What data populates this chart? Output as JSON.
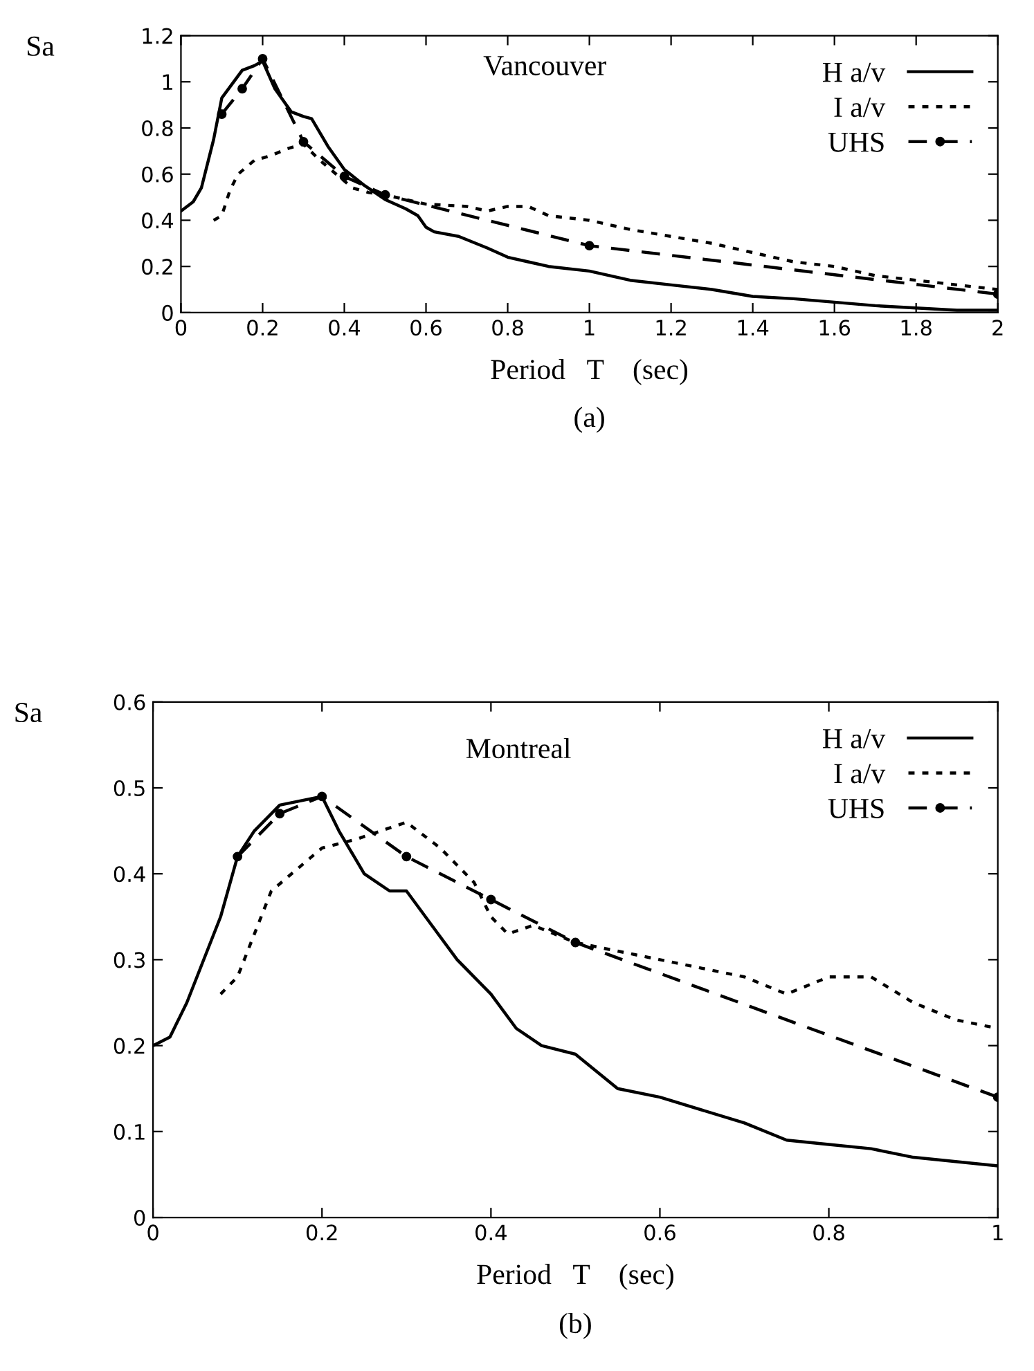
{
  "chart_data": [
    {
      "type": "line",
      "title": "Vancouver",
      "xlabel": "Period   T    (sec)",
      "ylabel": "Sa",
      "annotations": [
        "(a)"
      ],
      "xlim": [
        0,
        2
      ],
      "ylim": [
        0,
        1.2
      ],
      "xticks": [
        0,
        0.2,
        0.4,
        0.6,
        0.8,
        1,
        1.2,
        1.4,
        1.6,
        1.8,
        2
      ],
      "yticks": [
        0,
        0.2,
        0.4,
        0.6,
        0.8,
        1,
        1.2
      ],
      "grid": false,
      "legend": "top right",
      "series": [
        {
          "name": "H a/v",
          "color": "#000000",
          "line_style": "solid",
          "marker": "none",
          "x": [
            0,
            0.03,
            0.05,
            0.08,
            0.1,
            0.15,
            0.18,
            0.2,
            0.23,
            0.27,
            0.3,
            0.32,
            0.36,
            0.4,
            0.45,
            0.5,
            0.55,
            0.58,
            0.6,
            0.62,
            0.68,
            0.75,
            0.8,
            0.85,
            0.9,
            1.0,
            1.1,
            1.2,
            1.3,
            1.4,
            1.5,
            1.6,
            1.7,
            1.8,
            1.9,
            2.0
          ],
          "values": [
            0.44,
            0.48,
            0.54,
            0.75,
            0.93,
            1.05,
            1.07,
            1.09,
            0.97,
            0.87,
            0.85,
            0.84,
            0.72,
            0.62,
            0.55,
            0.49,
            0.45,
            0.42,
            0.37,
            0.35,
            0.33,
            0.28,
            0.24,
            0.22,
            0.2,
            0.18,
            0.14,
            0.12,
            0.1,
            0.07,
            0.06,
            0.045,
            0.03,
            0.02,
            0.01,
            0.01
          ]
        },
        {
          "name": "I a/v",
          "color": "#000000",
          "line_style": "dotted",
          "marker": "none",
          "x": [
            0.08,
            0.1,
            0.12,
            0.14,
            0.18,
            0.22,
            0.26,
            0.3,
            0.34,
            0.38,
            0.42,
            0.46,
            0.5,
            0.55,
            0.6,
            0.7,
            0.75,
            0.8,
            0.85,
            0.9,
            1.0,
            1.05,
            1.1,
            1.2,
            1.3,
            1.4,
            1.5,
            1.6,
            1.7,
            1.8,
            1.9,
            2.0
          ],
          "values": [
            0.4,
            0.42,
            0.53,
            0.6,
            0.66,
            0.68,
            0.71,
            0.73,
            0.66,
            0.6,
            0.54,
            0.52,
            0.51,
            0.49,
            0.47,
            0.46,
            0.44,
            0.46,
            0.46,
            0.42,
            0.4,
            0.38,
            0.36,
            0.33,
            0.3,
            0.26,
            0.22,
            0.2,
            0.16,
            0.14,
            0.12,
            0.1
          ]
        },
        {
          "name": "UHS",
          "color": "#000000",
          "line_style": "dashed",
          "marker": "circle",
          "x": [
            0.1,
            0.15,
            0.2,
            0.3,
            0.4,
            0.5,
            1.0,
            2.0
          ],
          "values": [
            0.86,
            0.97,
            1.1,
            0.74,
            0.59,
            0.51,
            0.29,
            0.08
          ]
        }
      ]
    },
    {
      "type": "line",
      "title": "Montreal",
      "xlabel": "Period   T    (sec)",
      "ylabel": "Sa",
      "annotations": [
        "(b)"
      ],
      "xlim": [
        0,
        1
      ],
      "ylim": [
        0,
        0.6
      ],
      "xticks": [
        0,
        0.2,
        0.4,
        0.6,
        0.8,
        1
      ],
      "yticks": [
        0,
        0.1,
        0.2,
        0.3,
        0.4,
        0.5,
        0.6
      ],
      "grid": false,
      "legend": "top right",
      "series": [
        {
          "name": "H a/v",
          "color": "#000000",
          "line_style": "solid",
          "marker": "none",
          "x": [
            0,
            0.02,
            0.04,
            0.08,
            0.1,
            0.12,
            0.15,
            0.2,
            0.22,
            0.25,
            0.28,
            0.3,
            0.33,
            0.36,
            0.4,
            0.43,
            0.46,
            0.5,
            0.55,
            0.6,
            0.7,
            0.75,
            0.8,
            0.85,
            0.9,
            1.0
          ],
          "values": [
            0.2,
            0.21,
            0.25,
            0.35,
            0.42,
            0.45,
            0.48,
            0.49,
            0.45,
            0.4,
            0.38,
            0.38,
            0.34,
            0.3,
            0.26,
            0.22,
            0.2,
            0.19,
            0.15,
            0.14,
            0.11,
            0.09,
            0.085,
            0.08,
            0.07,
            0.06
          ]
        },
        {
          "name": "I a/v",
          "color": "#000000",
          "line_style": "dotted",
          "marker": "none",
          "x": [
            0.08,
            0.1,
            0.14,
            0.2,
            0.24,
            0.27,
            0.3,
            0.34,
            0.38,
            0.4,
            0.42,
            0.45,
            0.5,
            0.55,
            0.6,
            0.65,
            0.7,
            0.75,
            0.8,
            0.85,
            0.9,
            0.95,
            1.0
          ],
          "values": [
            0.26,
            0.28,
            0.38,
            0.43,
            0.44,
            0.45,
            0.46,
            0.43,
            0.39,
            0.35,
            0.33,
            0.34,
            0.32,
            0.31,
            0.3,
            0.29,
            0.28,
            0.26,
            0.28,
            0.28,
            0.25,
            0.23,
            0.22
          ]
        },
        {
          "name": "UHS",
          "color": "#000000",
          "line_style": "dashed",
          "marker": "circle",
          "x": [
            0.1,
            0.15,
            0.2,
            0.3,
            0.4,
            0.5,
            1.0
          ],
          "values": [
            0.42,
            0.47,
            0.49,
            0.42,
            0.37,
            0.32,
            0.14
          ]
        }
      ]
    }
  ]
}
